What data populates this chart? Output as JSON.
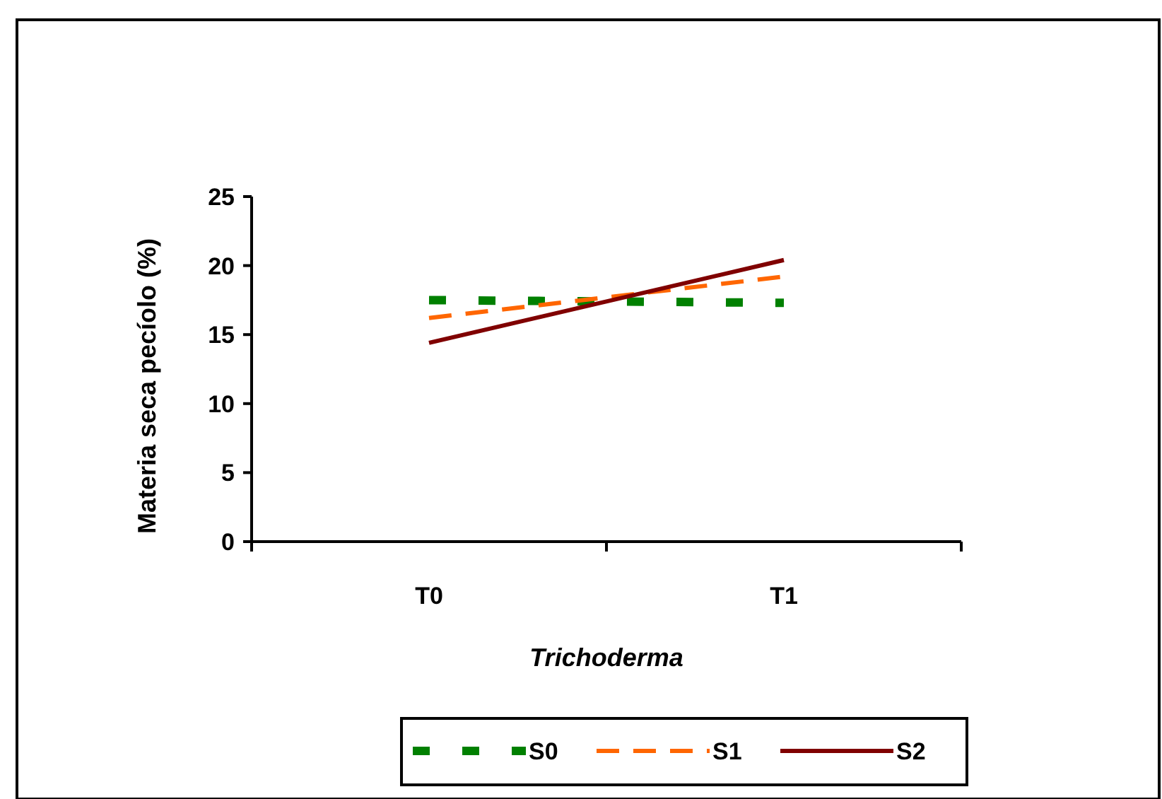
{
  "chart_data": {
    "type": "line",
    "xlabel": "Trichoderma",
    "ylabel": "Materia seca pecíolo (%)",
    "categories": [
      "T0",
      "T1"
    ],
    "series": [
      {
        "name": "S0",
        "color": "#008000",
        "values": [
          17.5,
          17.3
        ],
        "line_style": "dotted"
      },
      {
        "name": "S1",
        "color": "#ff6600",
        "values": [
          16.2,
          19.2
        ],
        "line_style": "dashed"
      },
      {
        "name": "S2",
        "color": "#800000",
        "values": [
          14.4,
          20.4
        ],
        "line_style": "solid"
      }
    ],
    "ylim": [
      0,
      25
    ],
    "yticks": [
      0,
      5,
      10,
      15,
      20,
      25
    ],
    "grid": false,
    "legend": "bottom",
    "marker": "none"
  }
}
